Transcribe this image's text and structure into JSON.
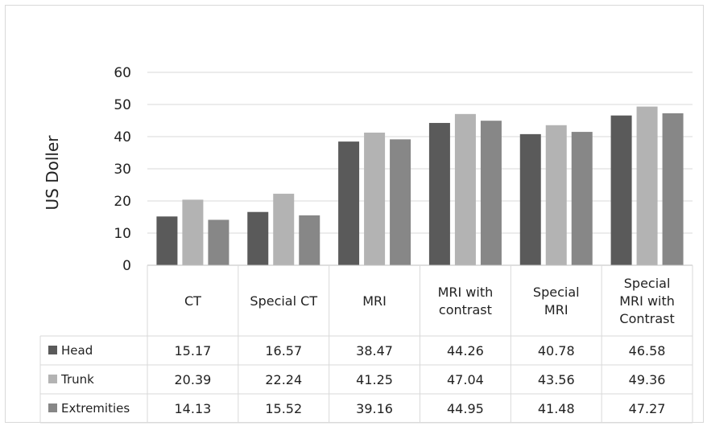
{
  "chart_data": {
    "type": "bar",
    "ylabel": "US Doller",
    "ylim": [
      0,
      60
    ],
    "yticks": [
      "0",
      "10",
      "20",
      "30",
      "40",
      "50",
      "60"
    ],
    "grid": true,
    "legend": "data-table-left",
    "categories": [
      "CT",
      "Special CT",
      "MRI",
      "MRI with contrast",
      "Special MRI",
      "Special MRI with Contrast"
    ],
    "category_lines": [
      [
        "CT"
      ],
      [
        "Special CT"
      ],
      [
        "MRI"
      ],
      [
        "MRI with",
        "contrast"
      ],
      [
        "Special",
        "MRI"
      ],
      [
        "Special",
        "MRI with",
        "Contrast"
      ]
    ],
    "series": [
      {
        "name": "Head",
        "color": "#5a5a5a",
        "values": [
          15.17,
          16.57,
          38.47,
          44.26,
          40.78,
          46.58
        ],
        "labels": [
          "15.17",
          "16.57",
          "38.47",
          "44.26",
          "40.78",
          "46.58"
        ]
      },
      {
        "name": "Trunk",
        "color": "#b3b3b3",
        "values": [
          20.39,
          22.24,
          41.25,
          47.04,
          43.56,
          49.36
        ],
        "labels": [
          "20.39",
          "22.24",
          "41.25",
          "47.04",
          "43.56",
          "49.36"
        ]
      },
      {
        "name": "Extremities",
        "color": "#878787",
        "values": [
          14.13,
          15.52,
          39.16,
          44.95,
          41.48,
          47.27
        ],
        "labels": [
          "14.13",
          "15.52",
          "39.16",
          "44.95",
          "41.48",
          "47.27"
        ]
      }
    ]
  }
}
